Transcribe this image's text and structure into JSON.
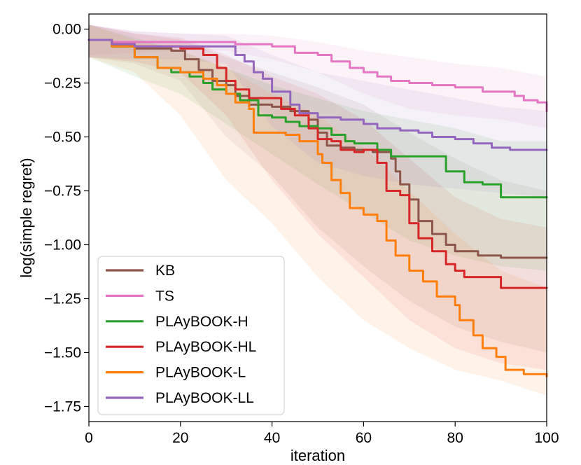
{
  "chart_data": {
    "type": "line",
    "title": "",
    "xlabel": "iteration",
    "ylabel": "log(simple regret)",
    "xlim": [
      0,
      100
    ],
    "ylim": [
      -1.82,
      0.07
    ],
    "xticks": [
      0,
      20,
      40,
      60,
      80,
      100
    ],
    "xtick_labels": [
      "0",
      "20",
      "40",
      "60",
      "80",
      "100"
    ],
    "yticks": [
      0.0,
      -0.25,
      -0.5,
      -0.75,
      -1.0,
      -1.25,
      -1.5,
      -1.75
    ],
    "ytick_labels": [
      "0.00",
      "−0.25",
      "−0.50",
      "−0.75",
      "−1.00",
      "−1.25",
      "−1.50",
      "−1.75"
    ],
    "legend_position": "lower-left",
    "series": [
      {
        "name": "KB",
        "color": "#8c564b",
        "points": [
          [
            0,
            -0.05
          ],
          [
            5,
            -0.07
          ],
          [
            10,
            -0.09
          ],
          [
            18,
            -0.1
          ],
          [
            21,
            -0.14
          ],
          [
            24,
            -0.19
          ],
          [
            27,
            -0.24
          ],
          [
            30,
            -0.26
          ],
          [
            32,
            -0.31
          ],
          [
            35,
            -0.35
          ],
          [
            40,
            -0.36
          ],
          [
            44,
            -0.38
          ],
          [
            48,
            -0.42
          ],
          [
            50,
            -0.48
          ],
          [
            52,
            -0.54
          ],
          [
            55,
            -0.55
          ],
          [
            58,
            -0.56
          ],
          [
            62,
            -0.57
          ],
          [
            66,
            -0.6
          ],
          [
            67,
            -0.66
          ],
          [
            68,
            -0.72
          ],
          [
            70,
            -0.79
          ],
          [
            72,
            -0.89
          ],
          [
            75,
            -0.95
          ],
          [
            78,
            -1.0
          ],
          [
            80,
            -1.03
          ],
          [
            85,
            -1.05
          ],
          [
            90,
            -1.06
          ],
          [
            100,
            -1.06
          ]
        ],
        "band_upper": [
          [
            0,
            0.02
          ],
          [
            10,
            -0.02
          ],
          [
            20,
            -0.05
          ],
          [
            30,
            -0.13
          ],
          [
            40,
            -0.2
          ],
          [
            50,
            -0.27
          ],
          [
            60,
            -0.35
          ],
          [
            70,
            -0.48
          ],
          [
            80,
            -0.6
          ],
          [
            90,
            -0.7
          ],
          [
            100,
            -0.75
          ]
        ],
        "band_lower": [
          [
            0,
            -0.13
          ],
          [
            10,
            -0.16
          ],
          [
            20,
            -0.24
          ],
          [
            30,
            -0.5
          ],
          [
            40,
            -0.68
          ],
          [
            50,
            -0.92
          ],
          [
            60,
            -1.1
          ],
          [
            70,
            -1.26
          ],
          [
            80,
            -1.38
          ],
          [
            90,
            -1.45
          ],
          [
            100,
            -1.5
          ]
        ]
      },
      {
        "name": "TS",
        "color": "#e377c2",
        "points": [
          [
            0,
            -0.05
          ],
          [
            5,
            -0.06
          ],
          [
            10,
            -0.06
          ],
          [
            20,
            -0.06
          ],
          [
            30,
            -0.06
          ],
          [
            32,
            -0.07
          ],
          [
            40,
            -0.08
          ],
          [
            45,
            -0.11
          ],
          [
            50,
            -0.12
          ],
          [
            53,
            -0.15
          ],
          [
            57,
            -0.18
          ],
          [
            60,
            -0.2
          ],
          [
            63,
            -0.22
          ],
          [
            66,
            -0.24
          ],
          [
            70,
            -0.25
          ],
          [
            75,
            -0.26
          ],
          [
            80,
            -0.27
          ],
          [
            86,
            -0.29
          ],
          [
            90,
            -0.29
          ],
          [
            93,
            -0.31
          ],
          [
            95,
            -0.33
          ],
          [
            98,
            -0.34
          ],
          [
            100,
            -0.38
          ]
        ],
        "band_upper": [
          [
            0,
            0.02
          ],
          [
            10,
            -0.01
          ],
          [
            20,
            -0.02
          ],
          [
            30,
            -0.02
          ],
          [
            40,
            -0.03
          ],
          [
            50,
            -0.06
          ],
          [
            60,
            -0.1
          ],
          [
            70,
            -0.13
          ],
          [
            80,
            -0.16
          ],
          [
            90,
            -0.18
          ],
          [
            100,
            -0.22
          ]
        ],
        "band_lower": [
          [
            0,
            -0.12
          ],
          [
            10,
            -0.11
          ],
          [
            20,
            -0.1
          ],
          [
            30,
            -0.1
          ],
          [
            40,
            -0.14
          ],
          [
            50,
            -0.2
          ],
          [
            60,
            -0.3
          ],
          [
            70,
            -0.37
          ],
          [
            80,
            -0.4
          ],
          [
            90,
            -0.42
          ],
          [
            100,
            -0.46
          ]
        ]
      },
      {
        "name": "PLAyBOOK-H",
        "color": "#2ca02c",
        "points": [
          [
            0,
            -0.05
          ],
          [
            5,
            -0.08
          ],
          [
            10,
            -0.13
          ],
          [
            15,
            -0.18
          ],
          [
            18,
            -0.2
          ],
          [
            22,
            -0.22
          ],
          [
            25,
            -0.25
          ],
          [
            27,
            -0.28
          ],
          [
            30,
            -0.3
          ],
          [
            33,
            -0.33
          ],
          [
            37,
            -0.4
          ],
          [
            40,
            -0.41
          ],
          [
            43,
            -0.43
          ],
          [
            46,
            -0.45
          ],
          [
            50,
            -0.46
          ],
          [
            53,
            -0.49
          ],
          [
            56,
            -0.52
          ],
          [
            58,
            -0.53
          ],
          [
            63,
            -0.56
          ],
          [
            66,
            -0.59
          ],
          [
            70,
            -0.59
          ],
          [
            75,
            -0.59
          ],
          [
            78,
            -0.66
          ],
          [
            80,
            -0.66
          ],
          [
            82,
            -0.71
          ],
          [
            86,
            -0.72
          ],
          [
            90,
            -0.78
          ],
          [
            100,
            -0.78
          ]
        ],
        "band_upper": [
          [
            0,
            0.02
          ],
          [
            10,
            -0.04
          ],
          [
            20,
            -0.1
          ],
          [
            30,
            -0.18
          ],
          [
            40,
            -0.26
          ],
          [
            50,
            -0.32
          ],
          [
            60,
            -0.38
          ],
          [
            70,
            -0.42
          ],
          [
            80,
            -0.46
          ],
          [
            90,
            -0.52
          ],
          [
            100,
            -0.52
          ]
        ],
        "band_lower": [
          [
            0,
            -0.13
          ],
          [
            10,
            -0.22
          ],
          [
            20,
            -0.3
          ],
          [
            30,
            -0.44
          ],
          [
            40,
            -0.58
          ],
          [
            50,
            -0.72
          ],
          [
            60,
            -0.85
          ],
          [
            70,
            -0.98
          ],
          [
            80,
            -1.05
          ],
          [
            90,
            -1.1
          ],
          [
            100,
            -1.12
          ]
        ]
      },
      {
        "name": "PLAyBOOK-HL",
        "color": "#d62728",
        "points": [
          [
            0,
            -0.05
          ],
          [
            5,
            -0.07
          ],
          [
            10,
            -0.08
          ],
          [
            15,
            -0.08
          ],
          [
            20,
            -0.09
          ],
          [
            25,
            -0.12
          ],
          [
            28,
            -0.18
          ],
          [
            30,
            -0.24
          ],
          [
            32,
            -0.28
          ],
          [
            35,
            -0.32
          ],
          [
            38,
            -0.32
          ],
          [
            42,
            -0.37
          ],
          [
            45,
            -0.4
          ],
          [
            48,
            -0.46
          ],
          [
            50,
            -0.51
          ],
          [
            53,
            -0.52
          ],
          [
            55,
            -0.56
          ],
          [
            58,
            -0.57
          ],
          [
            60,
            -0.56
          ],
          [
            63,
            -0.62
          ],
          [
            65,
            -0.75
          ],
          [
            68,
            -0.77
          ],
          [
            70,
            -0.9
          ],
          [
            72,
            -0.97
          ],
          [
            75,
            -1.03
          ],
          [
            78,
            -1.09
          ],
          [
            80,
            -1.12
          ],
          [
            82,
            -1.15
          ],
          [
            90,
            -1.2
          ],
          [
            100,
            -1.2
          ]
        ],
        "band_upper": [
          [
            0,
            0.02
          ],
          [
            10,
            -0.02
          ],
          [
            20,
            -0.04
          ],
          [
            30,
            -0.12
          ],
          [
            40,
            -0.22
          ],
          [
            50,
            -0.3
          ],
          [
            60,
            -0.42
          ],
          [
            70,
            -0.6
          ],
          [
            80,
            -0.78
          ],
          [
            90,
            -0.88
          ],
          [
            100,
            -0.92
          ]
        ],
        "band_lower": [
          [
            0,
            -0.13
          ],
          [
            10,
            -0.15
          ],
          [
            20,
            -0.2
          ],
          [
            30,
            -0.4
          ],
          [
            40,
            -0.7
          ],
          [
            50,
            -0.95
          ],
          [
            60,
            -1.15
          ],
          [
            70,
            -1.35
          ],
          [
            80,
            -1.48
          ],
          [
            90,
            -1.55
          ],
          [
            100,
            -1.58
          ]
        ]
      },
      {
        "name": "PLAyBOOK-L",
        "color": "#ff7f0e",
        "points": [
          [
            0,
            -0.05
          ],
          [
            5,
            -0.08
          ],
          [
            10,
            -0.13
          ],
          [
            15,
            -0.18
          ],
          [
            20,
            -0.2
          ],
          [
            25,
            -0.23
          ],
          [
            28,
            -0.26
          ],
          [
            30,
            -0.3
          ],
          [
            32,
            -0.34
          ],
          [
            35,
            -0.37
          ],
          [
            36,
            -0.48
          ],
          [
            40,
            -0.48
          ],
          [
            43,
            -0.49
          ],
          [
            46,
            -0.52
          ],
          [
            50,
            -0.58
          ],
          [
            51,
            -0.62
          ],
          [
            53,
            -0.7
          ],
          [
            55,
            -0.76
          ],
          [
            57,
            -0.83
          ],
          [
            60,
            -0.86
          ],
          [
            63,
            -0.89
          ],
          [
            65,
            -0.98
          ],
          [
            67,
            -1.05
          ],
          [
            70,
            -1.12
          ],
          [
            73,
            -1.17
          ],
          [
            76,
            -1.24
          ],
          [
            80,
            -1.28
          ],
          [
            81,
            -1.35
          ],
          [
            84,
            -1.42
          ],
          [
            86,
            -1.48
          ],
          [
            89,
            -1.52
          ],
          [
            91,
            -1.58
          ],
          [
            95,
            -1.6
          ],
          [
            100,
            -1.61
          ]
        ],
        "band_upper": [
          [
            0,
            0.02
          ],
          [
            10,
            -0.05
          ],
          [
            20,
            -0.1
          ],
          [
            30,
            -0.18
          ],
          [
            40,
            -0.3
          ],
          [
            50,
            -0.4
          ],
          [
            60,
            -0.55
          ],
          [
            70,
            -0.75
          ],
          [
            80,
            -0.95
          ],
          [
            90,
            -1.12
          ],
          [
            100,
            -1.2
          ]
        ],
        "band_lower": [
          [
            0,
            -0.13
          ],
          [
            10,
            -0.2
          ],
          [
            20,
            -0.4
          ],
          [
            30,
            -0.7
          ],
          [
            40,
            -0.9
          ],
          [
            50,
            -1.15
          ],
          [
            60,
            -1.35
          ],
          [
            70,
            -1.48
          ],
          [
            80,
            -1.58
          ],
          [
            90,
            -1.63
          ],
          [
            100,
            -1.7
          ]
        ]
      },
      {
        "name": "PLAyBOOK-LL",
        "color": "#9467bd",
        "points": [
          [
            0,
            -0.05
          ],
          [
            5,
            -0.07
          ],
          [
            10,
            -0.08
          ],
          [
            20,
            -0.08
          ],
          [
            25,
            -0.08
          ],
          [
            30,
            -0.08
          ],
          [
            32,
            -0.12
          ],
          [
            34,
            -0.15
          ],
          [
            36,
            -0.2
          ],
          [
            38,
            -0.23
          ],
          [
            40,
            -0.29
          ],
          [
            44,
            -0.35
          ],
          [
            46,
            -0.39
          ],
          [
            50,
            -0.41
          ],
          [
            55,
            -0.42
          ],
          [
            60,
            -0.44
          ],
          [
            63,
            -0.46
          ],
          [
            68,
            -0.47
          ],
          [
            72,
            -0.48
          ],
          [
            75,
            -0.5
          ],
          [
            80,
            -0.51
          ],
          [
            84,
            -0.53
          ],
          [
            88,
            -0.55
          ],
          [
            92,
            -0.56
          ],
          [
            100,
            -0.56
          ]
        ],
        "band_upper": [
          [
            0,
            0.02
          ],
          [
            10,
            -0.01
          ],
          [
            20,
            -0.02
          ],
          [
            30,
            -0.03
          ],
          [
            40,
            -0.12
          ],
          [
            50,
            -0.2
          ],
          [
            60,
            -0.24
          ],
          [
            70,
            -0.28
          ],
          [
            80,
            -0.32
          ],
          [
            90,
            -0.36
          ],
          [
            100,
            -0.38
          ]
        ],
        "band_lower": [
          [
            0,
            -0.13
          ],
          [
            10,
            -0.14
          ],
          [
            20,
            -0.14
          ],
          [
            30,
            -0.16
          ],
          [
            40,
            -0.45
          ],
          [
            50,
            -0.62
          ],
          [
            60,
            -0.68
          ],
          [
            70,
            -0.72
          ],
          [
            80,
            -0.74
          ],
          [
            90,
            -0.76
          ],
          [
            100,
            -0.78
          ]
        ]
      }
    ]
  }
}
